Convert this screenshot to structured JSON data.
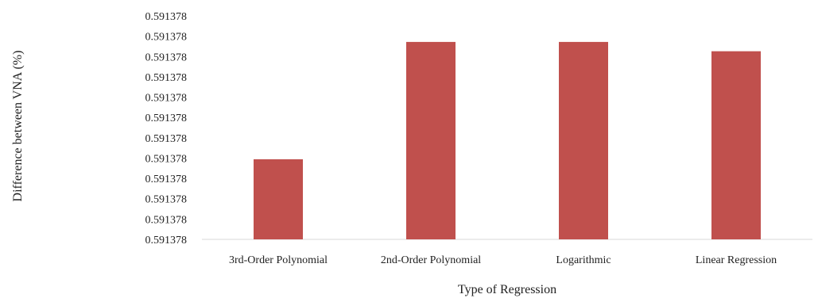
{
  "chart_data": {
    "type": "bar",
    "title": "",
    "xlabel": "Type of Regression",
    "ylabel": "Difference between VNA (%)",
    "categories": [
      "3rd-Order Polynomial",
      "2nd-Order Polynomial",
      "Logarithmic",
      "Linear Regression"
    ],
    "values": [
      0.5913781043,
      0.5913781106,
      0.5913781106,
      0.5913781101
    ],
    "ylim": [
      0.5913781,
      0.591378112
    ],
    "y_ticks": [
      "0.591378",
      "0.591378",
      "0.591378",
      "0.591378",
      "0.591378",
      "0.591378",
      "0.591378",
      "0.591378",
      "0.591378",
      "0.591378",
      "0.591378",
      "0.591378"
    ],
    "grid": false,
    "legend": "none",
    "bar_color": "#C0504D"
  }
}
